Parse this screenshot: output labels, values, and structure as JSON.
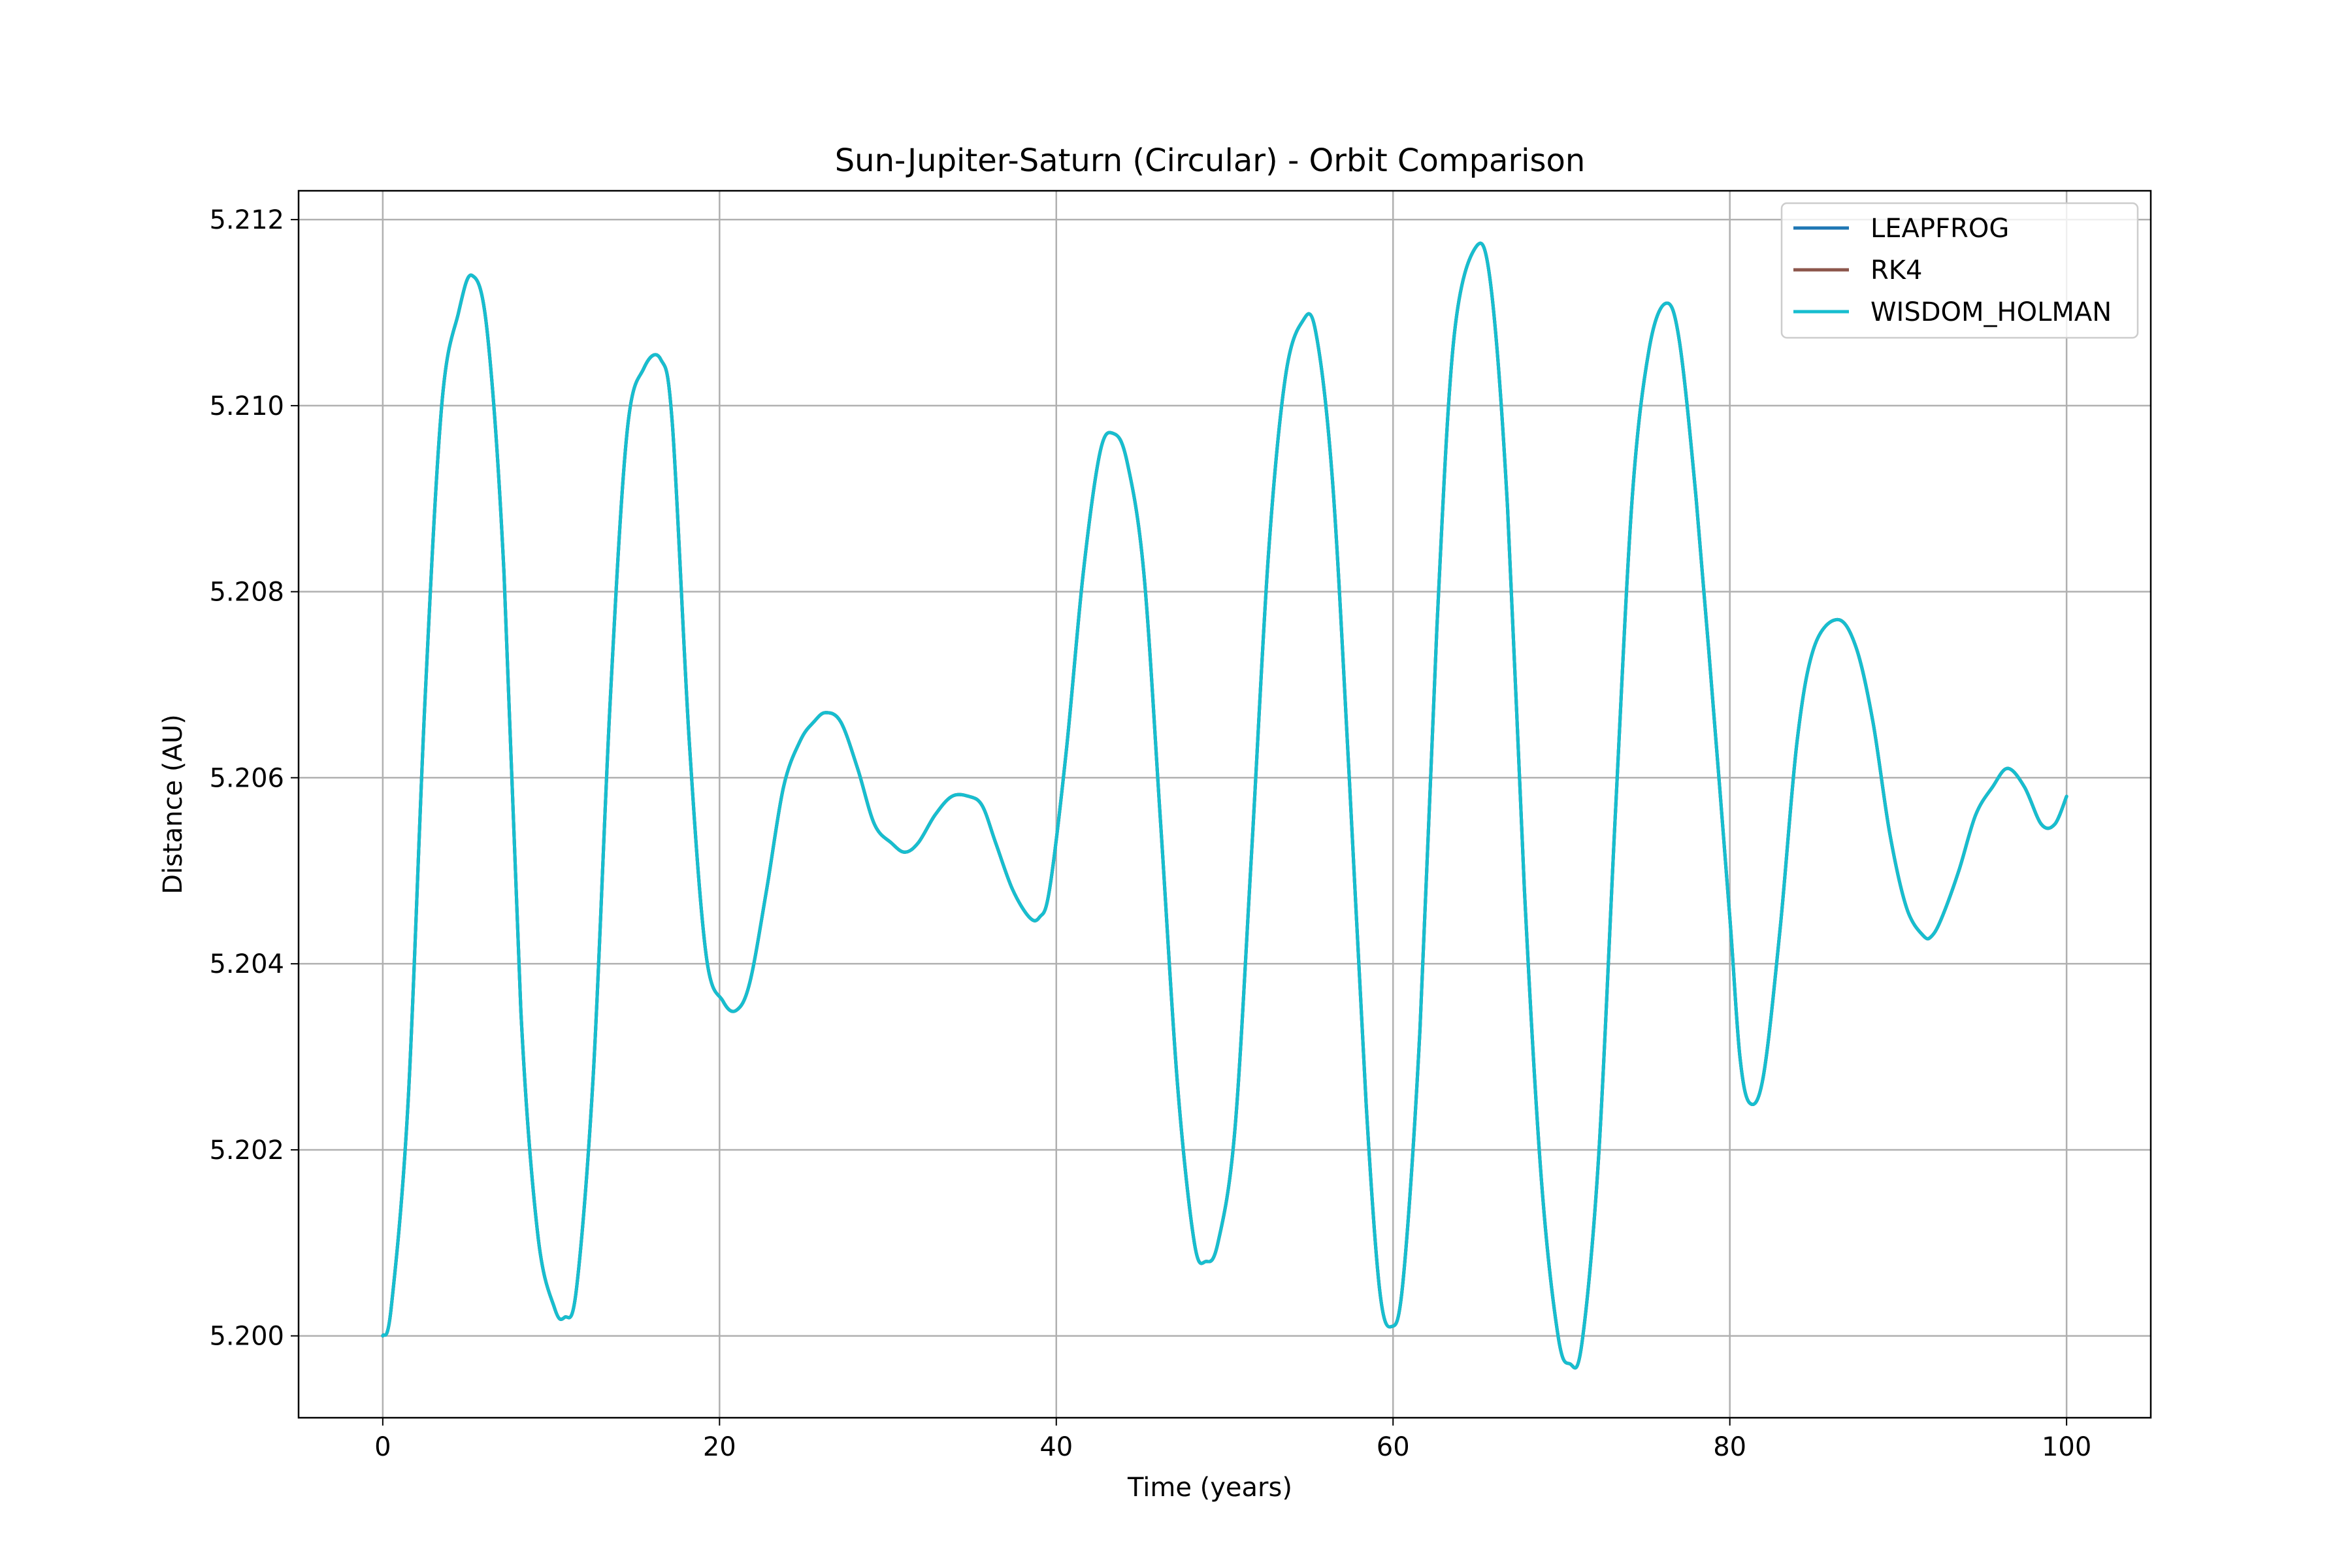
{
  "chart_data": {
    "type": "line",
    "title": "Sun-Jupiter-Saturn (Circular) - Orbit Comparison",
    "xlabel": "Time (years)",
    "ylabel": "Distance (AU)",
    "xlim": [
      -5,
      105
    ],
    "ylim": [
      5.19912,
      5.21231
    ],
    "xticks": [
      0,
      20,
      40,
      60,
      80,
      100
    ],
    "xtick_labels": [
      "0",
      "20",
      "40",
      "60",
      "80",
      "100"
    ],
    "yticks": [
      5.2,
      5.202,
      5.204,
      5.206,
      5.208,
      5.21,
      5.212
    ],
    "ytick_labels": [
      "5.200",
      "5.202",
      "5.204",
      "5.206",
      "5.208",
      "5.210",
      "5.212"
    ],
    "grid": true,
    "legend_position": "upper right",
    "series": [
      {
        "name": "LEAPFROG",
        "color": "#1f77b4",
        "x": [
          0,
          0.5,
          1.5,
          2.5,
          3.5,
          4.5,
          5.3,
          6.2,
          7.2,
          8.2,
          9.2,
          10.2,
          10.8,
          11.5,
          12.5,
          13.5,
          14.5,
          15.5,
          16.5,
          17.2,
          18.2,
          19.2,
          20.2,
          21.0,
          21.8,
          22.8,
          23.8,
          24.8,
          25.6,
          26.3,
          27.2,
          28.2,
          29.2,
          30.2,
          31.0,
          31.8,
          32.8,
          33.8,
          34.8,
          35.6,
          36.4,
          37.4,
          38.4,
          39.0,
          39.6,
          40.6,
          41.6,
          42.6,
          43.4,
          44.2,
          45.2,
          46.2,
          47.2,
          48.2,
          48.9,
          49.6,
          50.6,
          51.6,
          52.6,
          53.6,
          54.6,
          55.4,
          56.4,
          57.4,
          58.4,
          59.2,
          59.9,
          60.6,
          61.6,
          62.6,
          63.6,
          64.9,
          65.8,
          66.8,
          67.8,
          68.8,
          69.8,
          70.5,
          71.2,
          72.2,
          73.2,
          74.2,
          75.2,
          76.2,
          77.0,
          78.0,
          79.0,
          80.0,
          80.6,
          81.2,
          82.0,
          83.0,
          84.0,
          85.0,
          86.4,
          87.5,
          88.5,
          89.5,
          90.5,
          91.5,
          92.0,
          92.6,
          93.6,
          94.6,
          95.6,
          96.5,
          97.5,
          98.5,
          99.3,
          100
        ],
        "y": [
          5.2,
          5.2003,
          5.2025,
          5.2068,
          5.21,
          5.211,
          5.2114,
          5.2108,
          5.2082,
          5.2035,
          5.2011,
          5.2003,
          5.2002,
          5.2005,
          5.2028,
          5.2068,
          5.2097,
          5.2104,
          5.2105,
          5.2098,
          5.2064,
          5.2041,
          5.2036,
          5.2035,
          5.2038,
          5.2048,
          5.2059,
          5.2064,
          5.2066,
          5.2067,
          5.2066,
          5.2061,
          5.2055,
          5.2053,
          5.2052,
          5.2053,
          5.2056,
          5.2058,
          5.2058,
          5.2057,
          5.2053,
          5.2048,
          5.2045,
          5.2045,
          5.2048,
          5.2063,
          5.2082,
          5.2095,
          5.2097,
          5.2094,
          5.2082,
          5.2055,
          5.2027,
          5.201,
          5.2008,
          5.201,
          5.2022,
          5.2052,
          5.2084,
          5.2103,
          5.2109,
          5.2108,
          5.2092,
          5.206,
          5.2025,
          5.2005,
          5.2001,
          5.2006,
          5.2033,
          5.2076,
          5.2107,
          5.2117,
          5.2113,
          5.2089,
          5.2048,
          5.2017,
          5.2,
          5.1997,
          5.1999,
          5.2019,
          5.2056,
          5.209,
          5.2106,
          5.2111,
          5.2107,
          5.209,
          5.2068,
          5.2045,
          5.203,
          5.2025,
          5.2028,
          5.2044,
          5.2064,
          5.2074,
          5.2077,
          5.2074,
          5.2066,
          5.2054,
          5.2046,
          5.2043,
          5.2043,
          5.2045,
          5.205,
          5.2056,
          5.2059,
          5.2061,
          5.2059,
          5.2055,
          5.2055,
          5.2058
        ]
      },
      {
        "name": "RK4",
        "color": "#8c564b",
        "x": [
          0,
          0.5,
          1.5,
          2.5,
          3.5,
          4.5,
          5.3,
          6.2,
          7.2,
          8.2,
          9.2,
          10.2,
          10.8,
          11.5,
          12.5,
          13.5,
          14.5,
          15.5,
          16.5,
          17.2,
          18.2,
          19.2,
          20.2,
          21.0,
          21.8,
          22.8,
          23.8,
          24.8,
          25.6,
          26.3,
          27.2,
          28.2,
          29.2,
          30.2,
          31.0,
          31.8,
          32.8,
          33.8,
          34.8,
          35.6,
          36.4,
          37.4,
          38.4,
          39.0,
          39.6,
          40.6,
          41.6,
          42.6,
          43.4,
          44.2,
          45.2,
          46.2,
          47.2,
          48.2,
          48.9,
          49.6,
          50.6,
          51.6,
          52.6,
          53.6,
          54.6,
          55.4,
          56.4,
          57.4,
          58.4,
          59.2,
          59.9,
          60.6,
          61.6,
          62.6,
          63.6,
          64.9,
          65.8,
          66.8,
          67.8,
          68.8,
          69.8,
          70.5,
          71.2,
          72.2,
          73.2,
          74.2,
          75.2,
          76.2,
          77.0,
          78.0,
          79.0,
          80.0,
          80.6,
          81.2,
          82.0,
          83.0,
          84.0,
          85.0,
          86.4,
          87.5,
          88.5,
          89.5,
          90.5,
          91.5,
          92.0,
          92.6,
          93.6,
          94.6,
          95.6,
          96.5,
          97.5,
          98.5,
          99.3,
          100
        ],
        "y": [
          5.2,
          5.2003,
          5.2025,
          5.2068,
          5.21,
          5.211,
          5.2114,
          5.2108,
          5.2082,
          5.2035,
          5.2011,
          5.2003,
          5.2002,
          5.2005,
          5.2028,
          5.2068,
          5.2097,
          5.2104,
          5.2105,
          5.2098,
          5.2064,
          5.2041,
          5.2036,
          5.2035,
          5.2038,
          5.2048,
          5.2059,
          5.2064,
          5.2066,
          5.2067,
          5.2066,
          5.2061,
          5.2055,
          5.2053,
          5.2052,
          5.2053,
          5.2056,
          5.2058,
          5.2058,
          5.2057,
          5.2053,
          5.2048,
          5.2045,
          5.2045,
          5.2048,
          5.2063,
          5.2082,
          5.2095,
          5.2097,
          5.2094,
          5.2082,
          5.2055,
          5.2027,
          5.201,
          5.2008,
          5.201,
          5.2022,
          5.2052,
          5.2084,
          5.2103,
          5.2109,
          5.2108,
          5.2092,
          5.206,
          5.2025,
          5.2005,
          5.2001,
          5.2006,
          5.2033,
          5.2076,
          5.2107,
          5.2117,
          5.2113,
          5.2089,
          5.2048,
          5.2017,
          5.2,
          5.1997,
          5.1999,
          5.2019,
          5.2056,
          5.209,
          5.2106,
          5.2111,
          5.2107,
          5.209,
          5.2068,
          5.2045,
          5.203,
          5.2025,
          5.2028,
          5.2044,
          5.2064,
          5.2074,
          5.2077,
          5.2074,
          5.2066,
          5.2054,
          5.2046,
          5.2043,
          5.2043,
          5.2045,
          5.205,
          5.2056,
          5.2059,
          5.2061,
          5.2059,
          5.2055,
          5.2055,
          5.2058
        ]
      },
      {
        "name": "WISDOM_HOLMAN",
        "color": "#17becf",
        "x": [
          0,
          0.5,
          1.5,
          2.5,
          3.5,
          4.5,
          5.3,
          6.2,
          7.2,
          8.2,
          9.2,
          10.2,
          10.8,
          11.5,
          12.5,
          13.5,
          14.5,
          15.5,
          16.5,
          17.2,
          18.2,
          19.2,
          20.2,
          21.0,
          21.8,
          22.8,
          23.8,
          24.8,
          25.6,
          26.3,
          27.2,
          28.2,
          29.2,
          30.2,
          31.0,
          31.8,
          32.8,
          33.8,
          34.8,
          35.6,
          36.4,
          37.4,
          38.4,
          39.0,
          39.6,
          40.6,
          41.6,
          42.6,
          43.4,
          44.2,
          45.2,
          46.2,
          47.2,
          48.2,
          48.9,
          49.6,
          50.6,
          51.6,
          52.6,
          53.6,
          54.6,
          55.4,
          56.4,
          57.4,
          58.4,
          59.2,
          59.9,
          60.6,
          61.6,
          62.6,
          63.6,
          64.9,
          65.8,
          66.8,
          67.8,
          68.8,
          69.8,
          70.5,
          71.2,
          72.2,
          73.2,
          74.2,
          75.2,
          76.2,
          77.0,
          78.0,
          79.0,
          80.0,
          80.6,
          81.2,
          82.0,
          83.0,
          84.0,
          85.0,
          86.4,
          87.5,
          88.5,
          89.5,
          90.5,
          91.5,
          92.0,
          92.6,
          93.6,
          94.6,
          95.6,
          96.5,
          97.5,
          98.5,
          99.3,
          100
        ],
        "y": [
          5.2,
          5.2003,
          5.2025,
          5.2068,
          5.21,
          5.211,
          5.2114,
          5.2108,
          5.2082,
          5.2035,
          5.2011,
          5.2003,
          5.2002,
          5.2005,
          5.2028,
          5.2068,
          5.2097,
          5.2104,
          5.2105,
          5.2098,
          5.2064,
          5.2041,
          5.2036,
          5.2035,
          5.2038,
          5.2048,
          5.2059,
          5.2064,
          5.2066,
          5.2067,
          5.2066,
          5.2061,
          5.2055,
          5.2053,
          5.2052,
          5.2053,
          5.2056,
          5.2058,
          5.2058,
          5.2057,
          5.2053,
          5.2048,
          5.2045,
          5.2045,
          5.2048,
          5.2063,
          5.2082,
          5.2095,
          5.2097,
          5.2094,
          5.2082,
          5.2055,
          5.2027,
          5.201,
          5.2008,
          5.201,
          5.2022,
          5.2052,
          5.2084,
          5.2103,
          5.2109,
          5.2108,
          5.2092,
          5.206,
          5.2025,
          5.2005,
          5.2001,
          5.2006,
          5.2033,
          5.2076,
          5.2107,
          5.2117,
          5.2113,
          5.2089,
          5.2048,
          5.2017,
          5.2,
          5.1997,
          5.1999,
          5.2019,
          5.2056,
          5.209,
          5.2106,
          5.2111,
          5.2107,
          5.209,
          5.2068,
          5.2045,
          5.203,
          5.2025,
          5.2028,
          5.2044,
          5.2064,
          5.2074,
          5.2077,
          5.2074,
          5.2066,
          5.2054,
          5.2046,
          5.2043,
          5.2043,
          5.2045,
          5.205,
          5.2056,
          5.2059,
          5.2061,
          5.2059,
          5.2055,
          5.2055,
          5.2058
        ]
      }
    ]
  }
}
